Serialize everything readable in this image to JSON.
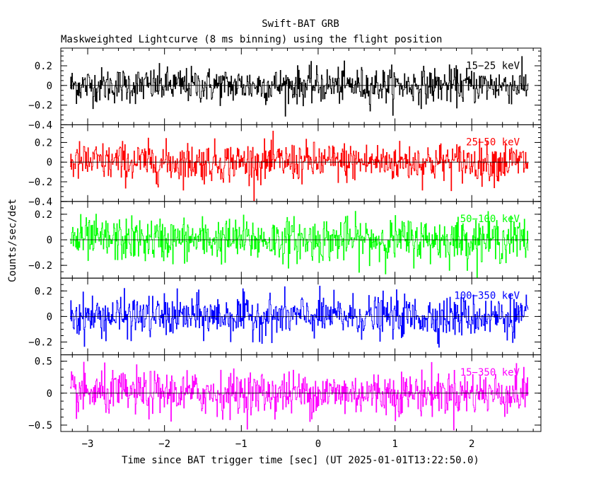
{
  "chart_data": {
    "type": "line",
    "title": "Swift-BAT GRB",
    "subtitle": "Maskweighted Lightcurve (8 ms binning) using the flight position",
    "xlabel": "Time since BAT trigger time [sec] (UT 2025-01-01T13:22:50.0)",
    "ylabel": "Counts/sec/det",
    "xlim": [
      -3.35,
      2.9
    ],
    "x_ticks": [
      -3,
      -2,
      -1,
      0,
      1,
      2
    ],
    "x_tick_labels": [
      "−3",
      "−2",
      "−1",
      "0",
      "1",
      "2"
    ],
    "data_x_range": [
      -3.23,
      2.74
    ],
    "bin_width": 0.008,
    "panels": [
      {
        "name": "15−25 keV",
        "color": "#000000",
        "ylim": [
          -0.4,
          0.38
        ],
        "noise_sigma": 0.09,
        "y_ticks": [
          -0.4,
          -0.2,
          0,
          0.2
        ],
        "y_tick_labels": [
          "−0.4",
          "−0.2",
          "0",
          "0.2"
        ]
      },
      {
        "name": "25−50 keV",
        "color": "#ff0000",
        "ylim": [
          -0.4,
          0.38
        ],
        "noise_sigma": 0.1,
        "y_ticks": [
          -0.4,
          -0.2,
          0,
          0.2
        ],
        "y_tick_labels": [
          "−0.4",
          "−0.2",
          "0",
          "0.2"
        ]
      },
      {
        "name": "50−100 keV",
        "color": "#00ff00",
        "ylim": [
          -0.3,
          0.3
        ],
        "noise_sigma": 0.085,
        "y_ticks": [
          -0.2,
          0,
          0.2
        ],
        "y_tick_labels": [
          "−0.2",
          "0",
          "0.2"
        ]
      },
      {
        "name": "100−350 keV",
        "color": "#0000ff",
        "ylim": [
          -0.3,
          0.3
        ],
        "noise_sigma": 0.08,
        "y_ticks": [
          -0.2,
          0,
          0.2
        ],
        "y_tick_labels": [
          "−0.2",
          "0",
          "0.2"
        ]
      },
      {
        "name": "15−350 keV",
        "color": "#ff00ff",
        "ylim": [
          -0.6,
          0.6
        ],
        "noise_sigma": 0.17,
        "y_ticks": [
          -0.5,
          0,
          0.5
        ],
        "y_tick_labels": [
          "−0.5",
          "0",
          "0.5"
        ]
      }
    ]
  }
}
